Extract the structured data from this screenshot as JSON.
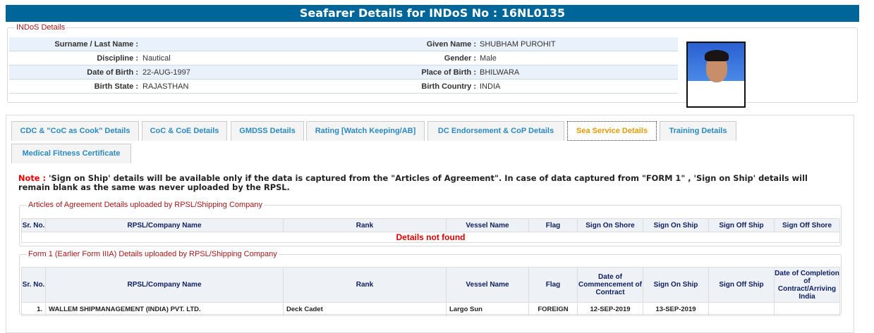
{
  "header": {
    "title": "Seafarer Details for INDoS No : 16NL0135"
  },
  "indos": {
    "legend": "INDoS Details",
    "rows": [
      {
        "l1": "Surname / Last Name :",
        "v1": "",
        "l2": "Given Name :",
        "v2": "SHUBHAM PUROHIT"
      },
      {
        "l1": "Discipline :",
        "v1": "Nautical",
        "l2": "Gender :",
        "v2": "Male"
      },
      {
        "l1": "Date of Birth :",
        "v1": "22-AUG-1997",
        "l2": "Place of Birth :",
        "v2": "BHILWARA"
      },
      {
        "l1": "Birth State :",
        "v1": "RAJASTHAN",
        "l2": "Birth Country :",
        "v2": "INDIA"
      }
    ]
  },
  "tabs": [
    "CDC & \"CoC as Cook\" Details",
    "CoC & CoE Details",
    "GMDSS Details",
    "Rating [Watch Keeping/AB]",
    "DC Endorsement & CoP Details",
    "Sea Service Details",
    "Training Details",
    "Medical Fitness Certificate"
  ],
  "active_tab": "Sea Service Details",
  "note": {
    "label": "Note :",
    "text": " 'Sign on Ship' details will be available only if the data is captured from the \"Articles of Agreement\". In case of data captured from \"FORM 1\" , 'Sign on Ship' details will remain blank as the same was never uploaded by the RPSL."
  },
  "articles": {
    "legend": "Articles of Agreement Details uploaded by RPSL/Shipping Company",
    "headers": [
      "Sr. No.",
      "RPSL/Company Name",
      "Rank",
      "Vessel Name",
      "Flag",
      "Sign On Shore",
      "Sign On Ship",
      "Sign Off Ship",
      "Sign Off Shore"
    ],
    "empty": "Details not found"
  },
  "form1": {
    "legend": "Form 1 (Earlier Form IIIA) Details uploaded by RPSL/Shipping Company",
    "headers": [
      "Sr. No.",
      "RPSL/Company Name",
      "Rank",
      "Vessel Name",
      "Flag",
      "Date of Commencement of Contract",
      "Sign On Ship",
      "Sign Off Ship",
      "Date of Completion of Contract/Arriving India"
    ],
    "rows": [
      [
        "1.",
        "WALLEM SHIPMANAGEMENT (INDIA) PVT. LTD.",
        "Deck Cadet",
        "Largo Sun",
        "FOREIGN",
        "12-SEP-2019",
        "13-SEP-2019",
        "",
        ""
      ]
    ]
  }
}
